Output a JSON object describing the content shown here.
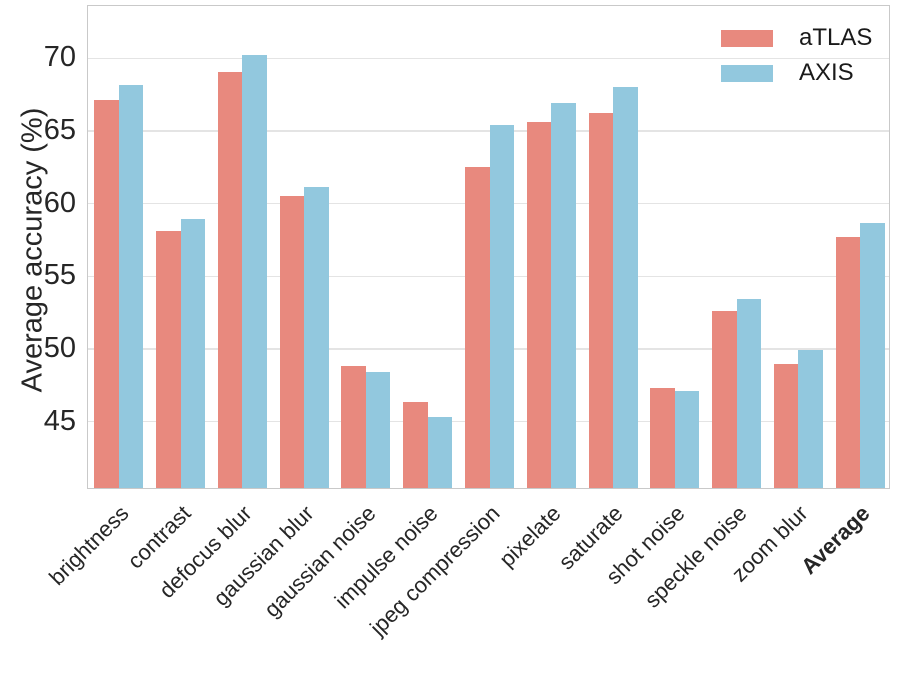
{
  "chart_data": {
    "type": "bar",
    "title": "",
    "xlabel": "",
    "ylabel": "Average accuracy (%)",
    "ylim": [
      40.3,
      73.6
    ],
    "yticks": [
      45,
      50,
      55,
      60,
      65,
      70
    ],
    "grid": "horizontal",
    "legend_position": "upper right",
    "categories": [
      "brightness",
      "contrast",
      "defocus blur",
      "gaussian blur",
      "gaussian noise",
      "impulse noise",
      "jpeg compression",
      "pixelate",
      "saturate",
      "shot noise",
      "speckle noise",
      "zoom blur",
      "Average"
    ],
    "bold_categories": [
      "Average"
    ],
    "series": [
      {
        "name": "aTLAS",
        "color": "#E8897E",
        "values": [
          67.0,
          58.0,
          68.9,
          60.4,
          48.7,
          46.2,
          62.4,
          65.5,
          66.1,
          47.2,
          52.5,
          48.8,
          57.6
        ]
      },
      {
        "name": "AXIS",
        "color": "#92C8DE",
        "values": [
          68.0,
          58.8,
          70.1,
          61.0,
          48.3,
          45.2,
          65.3,
          66.8,
          67.9,
          47.0,
          53.3,
          49.8,
          58.5
        ]
      }
    ],
    "colors": {
      "grid": "#e4e4e4",
      "spine": "#c9c9c9",
      "text": "#262626",
      "background": "#ffffff"
    }
  }
}
